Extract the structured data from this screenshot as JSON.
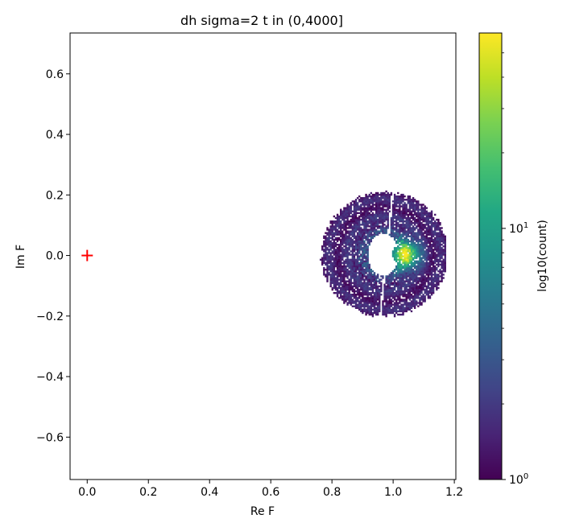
{
  "chart_data": {
    "type": "heatmap",
    "title": "dh  sigma=2  t in (0,4000]",
    "xlabel": "Re F",
    "ylabel": "Im F",
    "xlim": [
      -0.056,
      1.205
    ],
    "ylim": [
      -0.74,
      0.735
    ],
    "xticks": [
      0.0,
      0.2,
      0.4,
      0.6,
      0.8,
      1.0,
      1.2
    ],
    "xtick_labels": [
      "0.0",
      "0.2",
      "0.4",
      "0.6",
      "0.8",
      "1.0",
      "1.2"
    ],
    "yticks": [
      0.6,
      0.4,
      0.2,
      0.0,
      -0.2,
      -0.4,
      -0.6
    ],
    "ytick_labels": [
      "0.6",
      "0.4",
      "0.2",
      "0.0",
      "−0.2",
      "−0.4",
      "−0.6"
    ],
    "grid": false,
    "colormap": "viridis",
    "colorbar": {
      "label": "log10(count)",
      "scale": "log",
      "range": [
        1,
        60
      ],
      "major_ticks": [
        {
          "value": 1,
          "base": "10",
          "exp": "0"
        },
        {
          "value": 10,
          "base": "10",
          "exp": "1"
        }
      ],
      "minor_ticks": [
        2,
        3,
        4,
        5,
        6,
        7,
        8,
        9,
        20,
        30,
        40,
        50
      ]
    },
    "marker": {
      "x": 0.0,
      "y": 0.0,
      "symbol": "+",
      "color": "#ff0000"
    },
    "density": {
      "main_ring": {
        "center": [
          0.97,
          0.0
        ],
        "outer_radius": 0.205,
        "inner_radius": 0.055
      },
      "hot_spot": {
        "center": [
          1.035,
          0.0
        ],
        "radius_x": 0.055,
        "radius_y": 0.05,
        "peak_log10": 1.3
      },
      "right_lobe": {
        "center": [
          1.095,
          0.0
        ],
        "radius": 0.07
      },
      "hole": {
        "center": [
          0.965,
          0.0
        ],
        "radius_x": 0.05,
        "radius_y": 0.07
      },
      "gap_line": {
        "from": [
          0.955,
          -0.2
        ],
        "to": [
          0.995,
          0.2
        ],
        "color": "#ffffff"
      }
    }
  }
}
